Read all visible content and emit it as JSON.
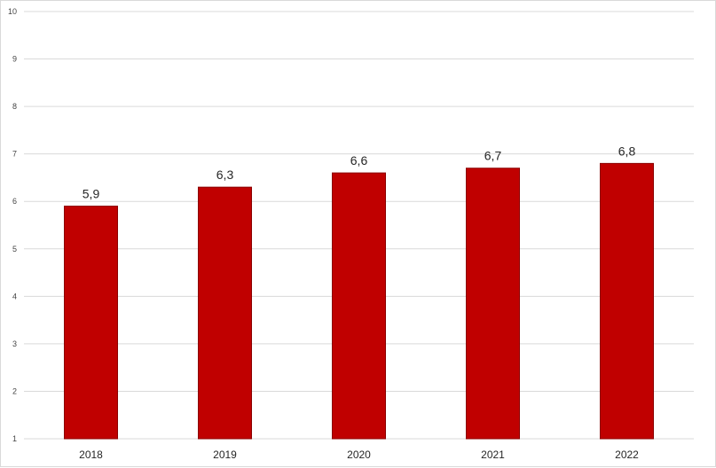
{
  "chart_data": {
    "type": "bar",
    "categories": [
      "2018",
      "2019",
      "2020",
      "2021",
      "2022"
    ],
    "values": [
      5.9,
      6.3,
      6.6,
      6.7,
      6.8
    ],
    "data_labels": [
      "5,9",
      "6,3",
      "6,6",
      "6,7",
      "6,8"
    ],
    "yticks": [
      "1",
      "2",
      "3",
      "4",
      "5",
      "6",
      "7",
      "8",
      "9",
      "10"
    ],
    "ylim": [
      1,
      10
    ],
    "grid": true,
    "legend": "none",
    "bar_color": "#c00000",
    "bar_edge_color": "#8b0000"
  }
}
